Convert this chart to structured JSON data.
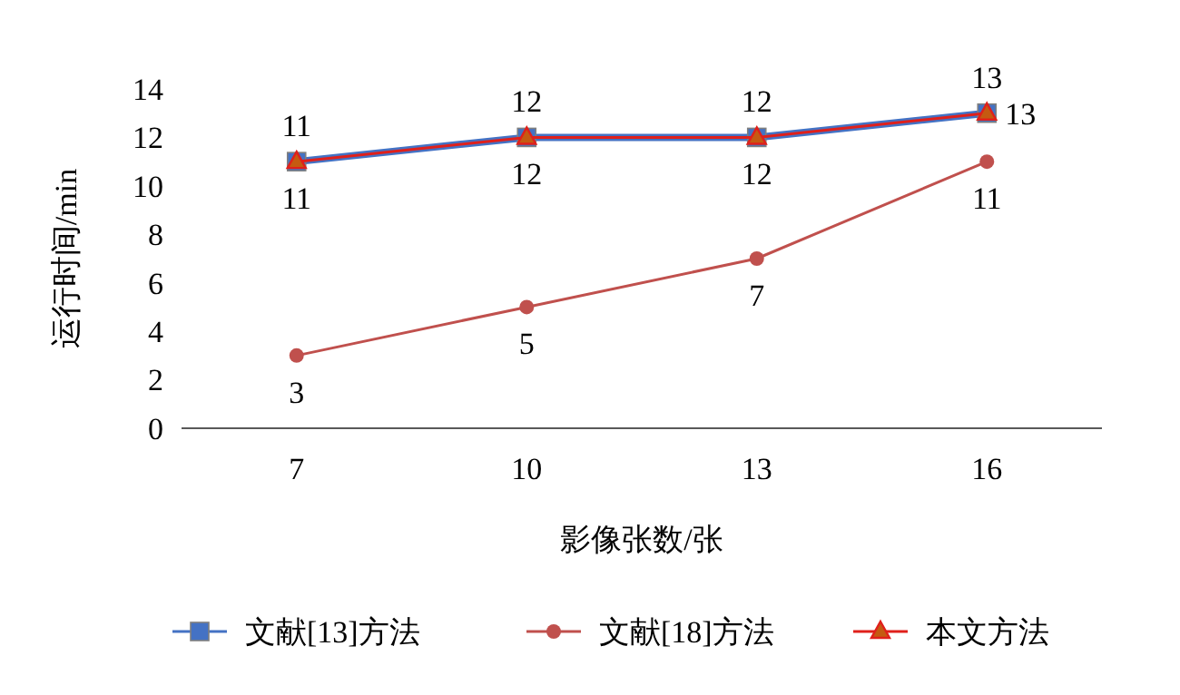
{
  "chart_data": {
    "type": "line",
    "xlabel": "影像张数/张",
    "ylabel": "运行时间/min",
    "categories": [
      "7",
      "10",
      "13",
      "16"
    ],
    "ylim": [
      0,
      14
    ],
    "yticks": [
      0,
      2,
      4,
      6,
      8,
      10,
      12,
      14
    ],
    "grid": false,
    "legend": "bottom",
    "data_labels": true,
    "line_style": "solid",
    "series": [
      {
        "name": "文献[13]方法",
        "color": "#4472c4",
        "marker": "square",
        "values": [
          11,
          12,
          12,
          13
        ]
      },
      {
        "name": "文献[18]方法",
        "color": "#c0504d",
        "marker": "circle",
        "values": [
          3,
          5,
          7,
          11
        ]
      },
      {
        "name": "本文方法",
        "color": "#e0201b",
        "marker": "triangle",
        "values": [
          11,
          12,
          12,
          13
        ]
      }
    ]
  }
}
